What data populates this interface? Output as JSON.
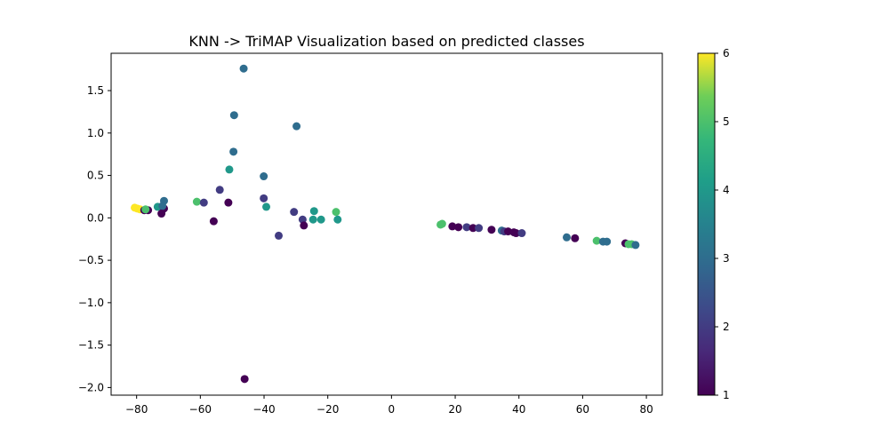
{
  "chart_data": {
    "type": "scatter",
    "title": "KNN -> TriMAP Visualization based on predicted classes",
    "xlabel": "",
    "ylabel": "",
    "xlim": [
      -88,
      85
    ],
    "ylim": [
      -2.09,
      1.94
    ],
    "xticks": [
      -80,
      -60,
      -40,
      -20,
      0,
      20,
      40,
      60,
      80
    ],
    "yticks": [
      -2.0,
      -1.5,
      -1.0,
      -0.5,
      0.0,
      0.5,
      1.0,
      1.5
    ],
    "xtick_labels": [
      "−80",
      "−60",
      "−40",
      "−20",
      "0",
      "20",
      "40",
      "60",
      "80"
    ],
    "ytick_labels": [
      "−2.0",
      "−1.5",
      "−1.0",
      "−0.5",
      "0.0",
      "0.5",
      "1.0",
      "1.5"
    ],
    "grid": false,
    "colorbar": {
      "colormap": "viridis",
      "range": [
        1,
        6
      ],
      "ticks": [
        1,
        2,
        3,
        4,
        5,
        6
      ],
      "tick_labels": [
        "1",
        "2",
        "3",
        "4",
        "5",
        "6"
      ]
    },
    "points": [
      {
        "x": -46.4,
        "y": 1.76,
        "c": 3
      },
      {
        "x": -49.4,
        "y": 1.21,
        "c": 3
      },
      {
        "x": -29.8,
        "y": 1.08,
        "c": 3
      },
      {
        "x": -49.6,
        "y": 0.78,
        "c": 3
      },
      {
        "x": -50.9,
        "y": 0.57,
        "c": 4
      },
      {
        "x": -40.1,
        "y": 0.49,
        "c": 3
      },
      {
        "x": -53.9,
        "y": 0.33,
        "c": 2
      },
      {
        "x": -40.1,
        "y": 0.23,
        "c": 2
      },
      {
        "x": -61.1,
        "y": 0.19,
        "c": 5
      },
      {
        "x": -58.9,
        "y": 0.18,
        "c": 2
      },
      {
        "x": -51.2,
        "y": 0.18,
        "c": 1
      },
      {
        "x": -39.3,
        "y": 0.13,
        "c": 4
      },
      {
        "x": -71.4,
        "y": 0.2,
        "c": 3
      },
      {
        "x": -73.4,
        "y": 0.13,
        "c": 4
      },
      {
        "x": -71.4,
        "y": 0.11,
        "c": 1
      },
      {
        "x": -71.9,
        "y": 0.14,
        "c": 3
      },
      {
        "x": -80.6,
        "y": 0.12,
        "c": 6
      },
      {
        "x": -79.8,
        "y": 0.11,
        "c": 6
      },
      {
        "x": -78.9,
        "y": 0.1,
        "c": 6
      },
      {
        "x": -77.6,
        "y": 0.09,
        "c": 1
      },
      {
        "x": -76.4,
        "y": 0.09,
        "c": 1
      },
      {
        "x": -77.2,
        "y": 0.1,
        "c": 5
      },
      {
        "x": -72.2,
        "y": 0.05,
        "c": 1
      },
      {
        "x": -30.6,
        "y": 0.07,
        "c": 2
      },
      {
        "x": -24.3,
        "y": 0.08,
        "c": 4
      },
      {
        "x": -17.4,
        "y": 0.07,
        "c": 5
      },
      {
        "x": -27.9,
        "y": -0.02,
        "c": 2
      },
      {
        "x": -24.6,
        "y": -0.02,
        "c": 4
      },
      {
        "x": -22.1,
        "y": -0.02,
        "c": 4
      },
      {
        "x": -16.9,
        "y": -0.02,
        "c": 4
      },
      {
        "x": -27.5,
        "y": -0.09,
        "c": 1
      },
      {
        "x": -55.8,
        "y": -0.04,
        "c": 1
      },
      {
        "x": -35.4,
        "y": -0.21,
        "c": 2
      },
      {
        "x": -46.1,
        "y": -1.9,
        "c": 1
      },
      {
        "x": 15.4,
        "y": -0.08,
        "c": 5
      },
      {
        "x": 15.9,
        "y": -0.07,
        "c": 5
      },
      {
        "x": 19.1,
        "y": -0.1,
        "c": 1
      },
      {
        "x": 21.0,
        "y": -0.11,
        "c": 1
      },
      {
        "x": 23.6,
        "y": -0.11,
        "c": 2
      },
      {
        "x": 25.6,
        "y": -0.12,
        "c": 1
      },
      {
        "x": 27.4,
        "y": -0.12,
        "c": 2
      },
      {
        "x": 31.4,
        "y": -0.14,
        "c": 1
      },
      {
        "x": 34.6,
        "y": -0.15,
        "c": 3
      },
      {
        "x": 35.4,
        "y": -0.16,
        "c": 2
      },
      {
        "x": 36.6,
        "y": -0.16,
        "c": 1
      },
      {
        "x": 38.4,
        "y": -0.17,
        "c": 1
      },
      {
        "x": 39.1,
        "y": -0.18,
        "c": 1
      },
      {
        "x": 40.9,
        "y": -0.18,
        "c": 2
      },
      {
        "x": 55.0,
        "y": -0.23,
        "c": 3
      },
      {
        "x": 57.6,
        "y": -0.24,
        "c": 1
      },
      {
        "x": 64.4,
        "y": -0.27,
        "c": 5
      },
      {
        "x": 66.4,
        "y": -0.28,
        "c": 3
      },
      {
        "x": 67.6,
        "y": -0.28,
        "c": 3
      },
      {
        "x": 73.4,
        "y": -0.3,
        "c": 1
      },
      {
        "x": 74.4,
        "y": -0.31,
        "c": 5
      },
      {
        "x": 75.4,
        "y": -0.31,
        "c": 5
      },
      {
        "x": 76.6,
        "y": -0.32,
        "c": 3
      }
    ]
  }
}
